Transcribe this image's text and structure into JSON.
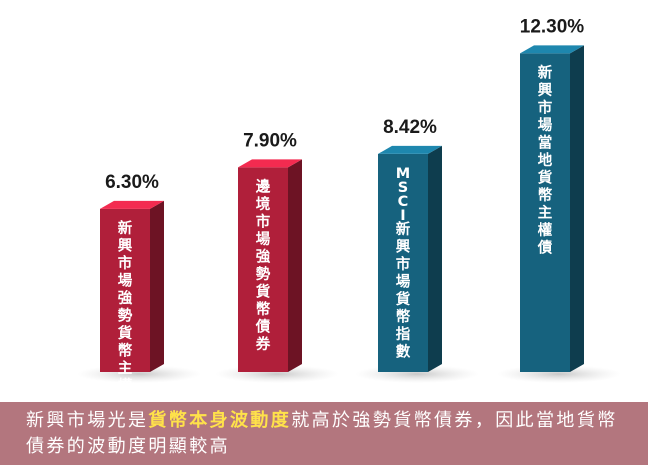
{
  "chart_data": {
    "type": "bar",
    "orientation": "vertical-3d",
    "categories": [
      "新興市場強勢貨幣主權債",
      "邊境市場強勢貨幣債券",
      "MSCI新興市場貨幣指數",
      "新興市場當地貨幣主權債"
    ],
    "values": [
      6.3,
      7.9,
      8.42,
      12.3
    ],
    "value_labels": [
      "6.30%",
      "7.90%",
      "8.42%",
      "12.30%"
    ],
    "colors": [
      "#b01f3a",
      "#b01f3a",
      "#16627e",
      "#16627e"
    ],
    "title": "",
    "xlabel": "",
    "ylabel": "",
    "grid": false,
    "legend": "none"
  },
  "caption": {
    "part1": "新興市場光是",
    "highlight": "貨幣本身波動度",
    "part2": "就高於強勢貨幣債券，因此當地貨幣債券的波動度明顯較高"
  },
  "colors": {
    "caption_bg": "#b3767e",
    "highlight": "#ffe24a"
  }
}
